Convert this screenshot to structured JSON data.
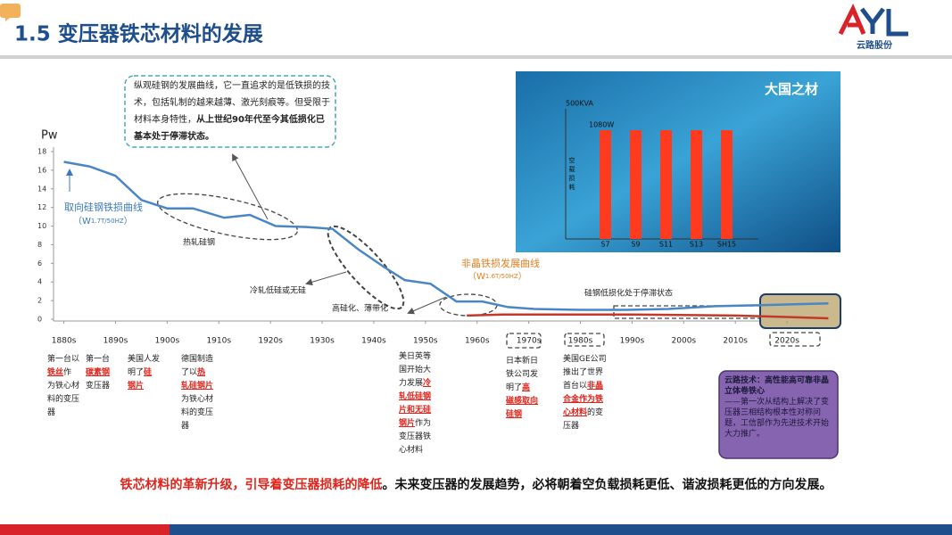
{
  "header": {
    "title": "1.5 变压器铁芯材料的发展",
    "logo_text": "云路股份"
  },
  "callout": [
    {
      "text": "纵观硅钢的发展曲线，它一直追求的是低铁损的技术，包括轧制的越来越薄、激光刻痕等。但受限于材料本身特性，"
    },
    {
      "text": "从上世纪90年代至今其低损化已基本处于停滞状态。",
      "bold": true
    }
  ],
  "chart_data": {
    "type": "line",
    "y_label": "Pw",
    "xlim": [
      1878,
      2030
    ],
    "ylim": [
      0,
      18
    ],
    "yticks": [
      0,
      2,
      4,
      6,
      8,
      10,
      12,
      14,
      16,
      18
    ],
    "xticks": [
      {
        "value": 1880,
        "label": "1880s"
      },
      {
        "value": 1890,
        "label": "1890s"
      },
      {
        "value": 1900,
        "label": "1900s"
      },
      {
        "value": 1910,
        "label": "1910s"
      },
      {
        "value": 1920,
        "label": "1920s"
      },
      {
        "value": 1930,
        "label": "1930s"
      },
      {
        "value": 1940,
        "label": "1940s"
      },
      {
        "value": 1950,
        "label": "1950s"
      },
      {
        "value": 1960,
        "label": "1960s"
      },
      {
        "value": 1970,
        "label": "1970s"
      },
      {
        "value": 1980,
        "label": "1980s"
      },
      {
        "value": 1990,
        "label": "1990s"
      },
      {
        "value": 2000,
        "label": "2000s"
      },
      {
        "value": 2010,
        "label": "2010s"
      },
      {
        "value": 2020,
        "label": "2020s"
      }
    ],
    "series": [
      {
        "name": "取向硅钢铁损曲线",
        "note": [
          "（W",
          "1.7T/50HZ",
          "）"
        ],
        "color": "#4a86c5",
        "label_color": "#3a78c0",
        "x": [
          1880,
          1885,
          1890,
          1895,
          1900,
          1905,
          1911,
          1916,
          1921,
          1927,
          1932,
          1937,
          1942,
          1946,
          1951,
          1956,
          1961,
          1966,
          1971,
          1980,
          1989,
          1997,
          2006,
          2014,
          2028
        ],
        "values": [
          16.9,
          16.4,
          15.4,
          12.8,
          11.9,
          11.9,
          10.9,
          11.2,
          10.0,
          9.9,
          9.7,
          7.5,
          5.6,
          4.2,
          3.8,
          1.9,
          1.9,
          1.3,
          1.1,
          1.0,
          1.0,
          1.1,
          1.4,
          1.5,
          1.7
        ]
      },
      {
        "name": "非晶铁损发展曲线",
        "note": [
          "（W",
          "1.6T/50HZ",
          "）"
        ],
        "color": "#c0392b",
        "label_color": "#e67e22",
        "x": [
          1958,
          1965,
          1990,
          2010,
          2028
        ],
        "values": [
          0.4,
          0.5,
          0.5,
          0.4,
          0.1
        ]
      }
    ],
    "annotations": [
      "热轧硅钢",
      "冷轧低硅或无硅",
      "高硅化、薄带化",
      "硅钢低损化处于停滞状态"
    ]
  },
  "notes": [
    [
      {
        "text": "第一台以"
      },
      {
        "text": "铁丝",
        "em": true
      },
      {
        "text": "作为铁心材料的变压器"
      }
    ],
    [
      {
        "text": "第一台"
      },
      {
        "text": "碳素钢",
        "em": true
      },
      {
        "text": "变压器"
      }
    ],
    [
      {
        "text": "美国人发明了"
      },
      {
        "text": "硅钢片",
        "em": true
      }
    ],
    [
      {
        "text": "德国制造了以"
      },
      {
        "text": "热轧硅钢片",
        "em": true
      },
      {
        "text": "为铁心材料的变压器"
      }
    ],
    [
      {
        "text": "美日英等国开始大力发展"
      },
      {
        "text": "冷轧低硅钢片和无硅钢片",
        "em": true
      },
      {
        "text": "作为变压器铁心材料"
      }
    ],
    [
      {
        "text": "日本新日铁公司发明了"
      },
      {
        "text": "高磁感取向硅钢",
        "em": true
      }
    ],
    [
      {
        "text": "美国GE公司推出了世界首台以"
      },
      {
        "text": "非晶合金作为铁心材料",
        "em": true
      },
      {
        "text": "的变压器"
      }
    ]
  ],
  "inset": {
    "title": "大国之材",
    "unit": "500KVA",
    "value_label": "1080W",
    "y_label": "空载损耗",
    "categories": [
      "S7",
      "S9",
      "S11",
      "S13",
      "SH15"
    ],
    "values": [
      1080,
      1080,
      1080,
      1080,
      1080
    ],
    "color": "#ff3b1f"
  },
  "highlight": {
    "title": "云路技术：高性能高可靠非晶立体卷铁心",
    "body": "——第一次从结构上解决了变压器三相结构根本性对称问题，工信部作为先进技术开始大力推广。"
  },
  "conclusion": [
    {
      "text": "铁芯材料的革新升级，引导着变压器损耗的降低",
      "em": true
    },
    {
      "text": "。未来变压器的发展趋势，必将朝着空负载损耗更低、谐波损耗更低的方向发展。"
    }
  ]
}
